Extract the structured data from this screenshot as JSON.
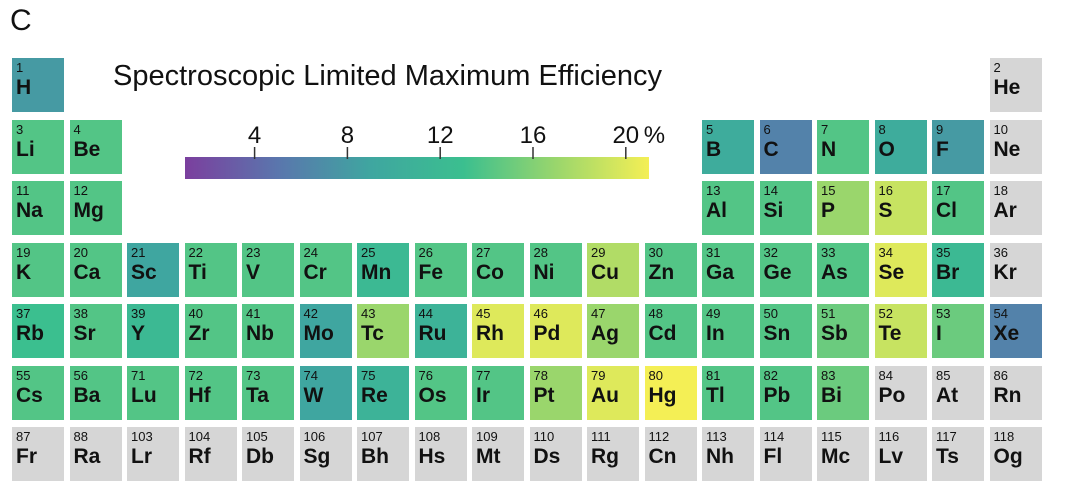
{
  "panel_label": "C",
  "chart_data": {
    "type": "heatmap",
    "title": "Spectroscopic Limited Maximum Efficiency",
    "colorbar": {
      "ticks": [
        4,
        8,
        12,
        16,
        20
      ],
      "unit": "%",
      "range": [
        1,
        21
      ],
      "colormap": [
        "#7b3f9e",
        "#5a76ad",
        "#3fa6a0",
        "#3bbf8f",
        "#9ad66c",
        "#f4ef55"
      ]
    },
    "missing_color": "#d6d6d6",
    "elements": [
      {
        "z": 1,
        "symbol": "H",
        "row": 1,
        "col": 1,
        "value": 8.0
      },
      {
        "z": 2,
        "symbol": "He",
        "row": 1,
        "col": 18,
        "value": null
      },
      {
        "z": 3,
        "symbol": "Li",
        "row": 2,
        "col": 1,
        "value": 14.0
      },
      {
        "z": 4,
        "symbol": "Be",
        "row": 2,
        "col": 2,
        "value": 14.0
      },
      {
        "z": 5,
        "symbol": "B",
        "row": 2,
        "col": 13,
        "value": 10.0
      },
      {
        "z": 6,
        "symbol": "C",
        "row": 2,
        "col": 14,
        "value": 6.0
      },
      {
        "z": 7,
        "symbol": "N",
        "row": 2,
        "col": 15,
        "value": 14.0
      },
      {
        "z": 8,
        "symbol": "O",
        "row": 2,
        "col": 16,
        "value": 10.0
      },
      {
        "z": 9,
        "symbol": "F",
        "row": 2,
        "col": 17,
        "value": 8.0
      },
      {
        "z": 10,
        "symbol": "Ne",
        "row": 2,
        "col": 18,
        "value": null
      },
      {
        "z": 11,
        "symbol": "Na",
        "row": 3,
        "col": 1,
        "value": 14.0
      },
      {
        "z": 12,
        "symbol": "Mg",
        "row": 3,
        "col": 2,
        "value": 14.0
      },
      {
        "z": 13,
        "symbol": "Al",
        "row": 3,
        "col": 13,
        "value": 14.0
      },
      {
        "z": 14,
        "symbol": "Si",
        "row": 3,
        "col": 14,
        "value": 14.0
      },
      {
        "z": 15,
        "symbol": "P",
        "row": 3,
        "col": 15,
        "value": 17.0
      },
      {
        "z": 16,
        "symbol": "S",
        "row": 3,
        "col": 16,
        "value": 19.0
      },
      {
        "z": 17,
        "symbol": "Cl",
        "row": 3,
        "col": 17,
        "value": 14.0
      },
      {
        "z": 18,
        "symbol": "Ar",
        "row": 3,
        "col": 18,
        "value": null
      },
      {
        "z": 19,
        "symbol": "K",
        "row": 4,
        "col": 1,
        "value": 14.0
      },
      {
        "z": 20,
        "symbol": "Ca",
        "row": 4,
        "col": 2,
        "value": 14.0
      },
      {
        "z": 21,
        "symbol": "Sc",
        "row": 4,
        "col": 3,
        "value": 9.0
      },
      {
        "z": 22,
        "symbol": "Ti",
        "row": 4,
        "col": 4,
        "value": 14.0
      },
      {
        "z": 23,
        "symbol": "V",
        "row": 4,
        "col": 5,
        "value": 14.0
      },
      {
        "z": 24,
        "symbol": "Cr",
        "row": 4,
        "col": 6,
        "value": 14.0
      },
      {
        "z": 25,
        "symbol": "Mn",
        "row": 4,
        "col": 7,
        "value": 12.0
      },
      {
        "z": 26,
        "symbol": "Fe",
        "row": 4,
        "col": 8,
        "value": 14.0
      },
      {
        "z": 27,
        "symbol": "Co",
        "row": 4,
        "col": 9,
        "value": 14.0
      },
      {
        "z": 28,
        "symbol": "Ni",
        "row": 4,
        "col": 10,
        "value": 14.0
      },
      {
        "z": 29,
        "symbol": "Cu",
        "row": 4,
        "col": 11,
        "value": 18.0
      },
      {
        "z": 30,
        "symbol": "Zn",
        "row": 4,
        "col": 12,
        "value": 14.0
      },
      {
        "z": 31,
        "symbol": "Ga",
        "row": 4,
        "col": 13,
        "value": 14.0
      },
      {
        "z": 32,
        "symbol": "Ge",
        "row": 4,
        "col": 14,
        "value": 14.0
      },
      {
        "z": 33,
        "symbol": "As",
        "row": 4,
        "col": 15,
        "value": 14.0
      },
      {
        "z": 34,
        "symbol": "Se",
        "row": 4,
        "col": 16,
        "value": 20.0
      },
      {
        "z": 35,
        "symbol": "Br",
        "row": 4,
        "col": 17,
        "value": 12.0
      },
      {
        "z": 36,
        "symbol": "Kr",
        "row": 4,
        "col": 18,
        "value": null
      },
      {
        "z": 37,
        "symbol": "Rb",
        "row": 5,
        "col": 1,
        "value": 13.0
      },
      {
        "z": 38,
        "symbol": "Sr",
        "row": 5,
        "col": 2,
        "value": 14.0
      },
      {
        "z": 39,
        "symbol": "Y",
        "row": 5,
        "col": 3,
        "value": 12.0
      },
      {
        "z": 40,
        "symbol": "Zr",
        "row": 5,
        "col": 4,
        "value": 14.0
      },
      {
        "z": 41,
        "symbol": "Nb",
        "row": 5,
        "col": 5,
        "value": 14.0
      },
      {
        "z": 42,
        "symbol": "Mo",
        "row": 5,
        "col": 6,
        "value": 9.0
      },
      {
        "z": 43,
        "symbol": "Tc",
        "row": 5,
        "col": 7,
        "value": 17.0
      },
      {
        "z": 44,
        "symbol": "Ru",
        "row": 5,
        "col": 8,
        "value": 11.0
      },
      {
        "z": 45,
        "symbol": "Rh",
        "row": 5,
        "col": 9,
        "value": 20.0
      },
      {
        "z": 46,
        "symbol": "Pd",
        "row": 5,
        "col": 10,
        "value": 20.0
      },
      {
        "z": 47,
        "symbol": "Ag",
        "row": 5,
        "col": 11,
        "value": 17.0
      },
      {
        "z": 48,
        "symbol": "Cd",
        "row": 5,
        "col": 12,
        "value": 14.0
      },
      {
        "z": 49,
        "symbol": "In",
        "row": 5,
        "col": 13,
        "value": 14.0
      },
      {
        "z": 50,
        "symbol": "Sn",
        "row": 5,
        "col": 14,
        "value": 14.0
      },
      {
        "z": 51,
        "symbol": "Sb",
        "row": 5,
        "col": 15,
        "value": 15.0
      },
      {
        "z": 52,
        "symbol": "Te",
        "row": 5,
        "col": 16,
        "value": 19.0
      },
      {
        "z": 53,
        "symbol": "I",
        "row": 5,
        "col": 17,
        "value": 15.0
      },
      {
        "z": 54,
        "symbol": "Xe",
        "row": 5,
        "col": 18,
        "value": 6.0
      },
      {
        "z": 55,
        "symbol": "Cs",
        "row": 6,
        "col": 1,
        "value": 14.0
      },
      {
        "z": 56,
        "symbol": "Ba",
        "row": 6,
        "col": 2,
        "value": 14.0
      },
      {
        "z": 71,
        "symbol": "Lu",
        "row": 6,
        "col": 3,
        "value": 14.0
      },
      {
        "z": 72,
        "symbol": "Hf",
        "row": 6,
        "col": 4,
        "value": 14.0
      },
      {
        "z": 73,
        "symbol": "Ta",
        "row": 6,
        "col": 5,
        "value": 14.0
      },
      {
        "z": 74,
        "symbol": "W",
        "row": 6,
        "col": 6,
        "value": 9.0
      },
      {
        "z": 75,
        "symbol": "Re",
        "row": 6,
        "col": 7,
        "value": 11.0
      },
      {
        "z": 76,
        "symbol": "Os",
        "row": 6,
        "col": 8,
        "value": 14.0
      },
      {
        "z": 77,
        "symbol": "Ir",
        "row": 6,
        "col": 9,
        "value": 14.0
      },
      {
        "z": 78,
        "symbol": "Pt",
        "row": 6,
        "col": 10,
        "value": 17.0
      },
      {
        "z": 79,
        "symbol": "Au",
        "row": 6,
        "col": 11,
        "value": 20.0
      },
      {
        "z": 80,
        "symbol": "Hg",
        "row": 6,
        "col": 12,
        "value": 21.0
      },
      {
        "z": 81,
        "symbol": "Tl",
        "row": 6,
        "col": 13,
        "value": 14.0
      },
      {
        "z": 82,
        "symbol": "Pb",
        "row": 6,
        "col": 14,
        "value": 14.0
      },
      {
        "z": 83,
        "symbol": "Bi",
        "row": 6,
        "col": 15,
        "value": 15.0
      },
      {
        "z": 84,
        "symbol": "Po",
        "row": 6,
        "col": 16,
        "value": null
      },
      {
        "z": 85,
        "symbol": "At",
        "row": 6,
        "col": 17,
        "value": null
      },
      {
        "z": 86,
        "symbol": "Rn",
        "row": 6,
        "col": 18,
        "value": null
      },
      {
        "z": 87,
        "symbol": "Fr",
        "row": 7,
        "col": 1,
        "value": null
      },
      {
        "z": 88,
        "symbol": "Ra",
        "row": 7,
        "col": 2,
        "value": null
      },
      {
        "z": 103,
        "symbol": "Lr",
        "row": 7,
        "col": 3,
        "value": null
      },
      {
        "z": 104,
        "symbol": "Rf",
        "row": 7,
        "col": 4,
        "value": null
      },
      {
        "z": 105,
        "symbol": "Db",
        "row": 7,
        "col": 5,
        "value": null
      },
      {
        "z": 106,
        "symbol": "Sg",
        "row": 7,
        "col": 6,
        "value": null
      },
      {
        "z": 107,
        "symbol": "Bh",
        "row": 7,
        "col": 7,
        "value": null
      },
      {
        "z": 108,
        "symbol": "Hs",
        "row": 7,
        "col": 8,
        "value": null
      },
      {
        "z": 109,
        "symbol": "Mt",
        "row": 7,
        "col": 9,
        "value": null
      },
      {
        "z": 110,
        "symbol": "Ds",
        "row": 7,
        "col": 10,
        "value": null
      },
      {
        "z": 111,
        "symbol": "Rg",
        "row": 7,
        "col": 11,
        "value": null
      },
      {
        "z": 112,
        "symbol": "Cn",
        "row": 7,
        "col": 12,
        "value": null
      },
      {
        "z": 113,
        "symbol": "Nh",
        "row": 7,
        "col": 13,
        "value": null
      },
      {
        "z": 114,
        "symbol": "Fl",
        "row": 7,
        "col": 14,
        "value": null
      },
      {
        "z": 115,
        "symbol": "Mc",
        "row": 7,
        "col": 15,
        "value": null
      },
      {
        "z": 116,
        "symbol": "Lv",
        "row": 7,
        "col": 16,
        "value": null
      },
      {
        "z": 117,
        "symbol": "Ts",
        "row": 7,
        "col": 17,
        "value": null
      },
      {
        "z": 118,
        "symbol": "Og",
        "row": 7,
        "col": 18,
        "value": null
      }
    ]
  }
}
